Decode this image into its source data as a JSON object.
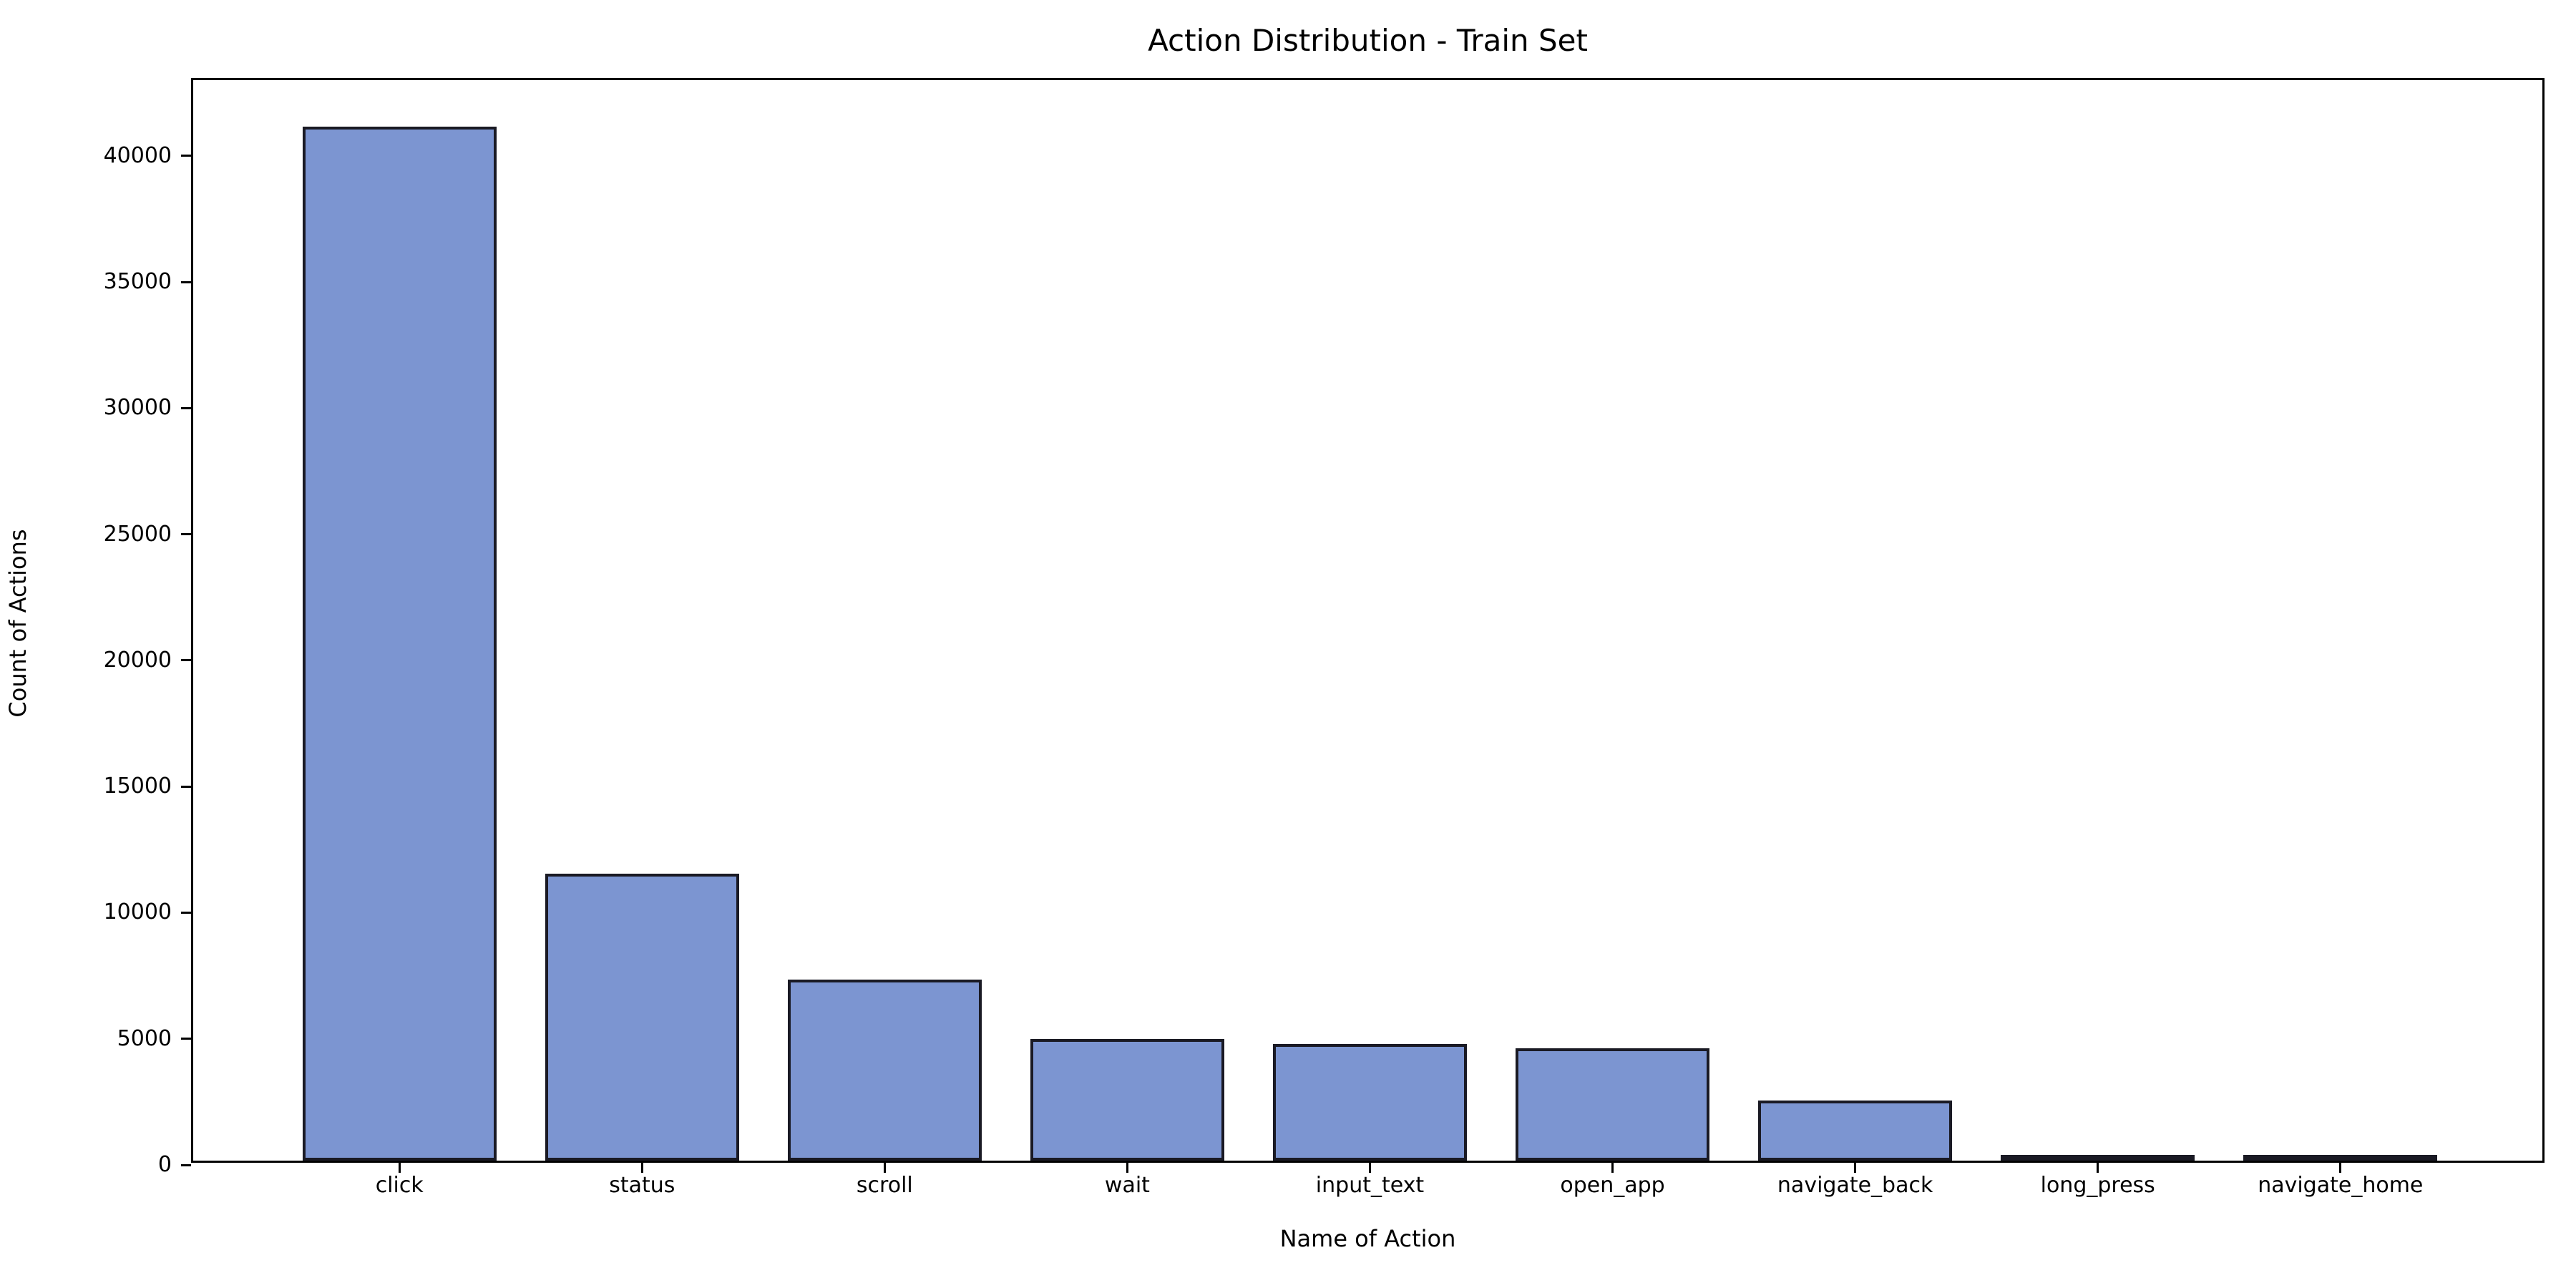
{
  "chart_data": {
    "type": "bar",
    "title": "Action Distribution - Train Set",
    "xlabel": "Name of Action",
    "ylabel": "Count of Actions",
    "categories": [
      "click",
      "status",
      "scroll",
      "wait",
      "input_text",
      "open_app",
      "navigate_back",
      "long_press",
      "navigate_home"
    ],
    "values": [
      41000,
      11380,
      7180,
      4820,
      4630,
      4460,
      2380,
      200,
      60
    ],
    "yticks": [
      0,
      5000,
      10000,
      15000,
      20000,
      25000,
      30000,
      35000,
      40000
    ],
    "ylim": [
      0,
      43000
    ],
    "xlim_pad_units": 0.85,
    "bar_width_units": 0.8,
    "grid": false,
    "legend": "none",
    "colors": {
      "bar_fill": "#7c95d1",
      "bar_edge": "#1a1a24",
      "axis": "#000000",
      "text": "#000000",
      "background": "#ffffff"
    }
  }
}
